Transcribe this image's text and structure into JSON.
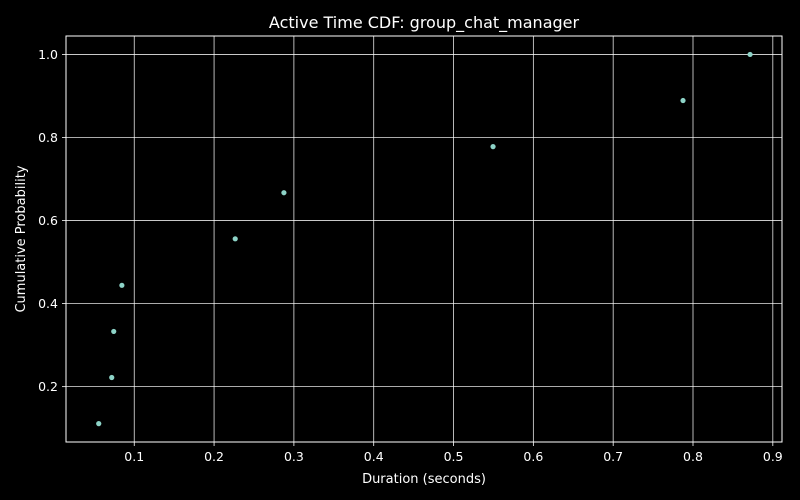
{
  "chart_data": {
    "type": "scatter",
    "title": "Active Time CDF: group_chat_manager",
    "xlabel": "Duration (seconds)",
    "ylabel": "Cumulative Probability",
    "xlim": [
      0.0145,
      0.9115
    ],
    "ylim": [
      0.0667,
      1.0444
    ],
    "xticks": [
      0.1,
      0.2,
      0.3,
      0.4,
      0.5,
      0.6,
      0.7,
      0.8,
      0.9
    ],
    "xtick_labels": [
      "0.1",
      "0.2",
      "0.3",
      "0.4",
      "0.5",
      "0.6",
      "0.7",
      "0.8",
      "0.9"
    ],
    "yticks": [
      0.2,
      0.4,
      0.6,
      0.8,
      1.0
    ],
    "ytick_labels": [
      "0.2",
      "0.4",
      "0.6",
      "0.8",
      "1.0"
    ],
    "grid": true,
    "background": "#000000",
    "foreground": "#ffffff",
    "marker_color": "#8dd3c7",
    "series": [
      {
        "x": [
          0.0555,
          0.0718,
          0.0743,
          0.0845,
          0.2265,
          0.2875,
          0.5495,
          0.7875,
          0.8715
        ],
        "y": [
          0.111,
          0.222,
          0.333,
          0.444,
          0.556,
          0.667,
          0.778,
          0.889,
          1.0
        ]
      }
    ]
  }
}
